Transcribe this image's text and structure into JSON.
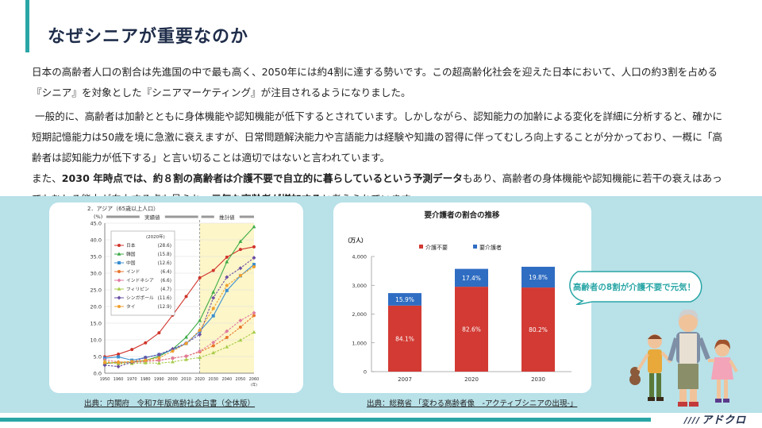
{
  "page": {
    "title": "なぜシニアが重要なのか",
    "paragraphs": {
      "p1": "日本の高齢者人口の割合は先進国の中で最も高く、2050年には約4割に達する勢いです。この超高齢化社会を迎えた日本において、人口の約3割を占める『シニア』を対象とした『シニアマーケティング』が注目されるようになりました。",
      "p2": "一般的に、高齢者は加齢とともに身体機能や認知機能が低下するとされています。しかしながら、認知能力の加齢による変化を詳細に分析すると、確かに短期記憶能力は50歳を境に急激に衰えますが、日常問題解決能力や言語能力は経験や知識の習得に伴ってむしろ向上することが分かっており、一概に「高齢者は認知能力が低下する」と言い切ることは適切ではないと言われています。",
      "p3_a": "また、",
      "p3_b": "2030 年時点では、約８割の高齢者は介護不要で自立的に暮らしているという予測データ",
      "p3_c": "もあり、高齢者の身体機能や認知機能に若干の衰えはあってもむしろ能力が向上する点も見られ、",
      "p3_d": "元気な高齢者が増加する",
      "p3_e": "と考えられています。"
    },
    "source_left": "出典：内閣府　令和7年版高齢社会白書（全体版）",
    "source_right": "出典：総務省 「変わる高齢者像　-アクティブシニアの出現-」",
    "callout": "高齢者の8割が介護不要で元気！",
    "logo": "アドクロ",
    "logo_mark": "////"
  },
  "chart_data": [
    {
      "type": "line",
      "title": "2．アジア（65歳以上人口）",
      "ylabel": "(%)",
      "xlabel": "(年)",
      "ylim": [
        0,
        45
      ],
      "yticks": [
        "0.0",
        "5.0",
        "10.0",
        "15.0",
        "20.0",
        "25.0",
        "30.0",
        "35.0",
        "40.0",
        "45.0"
      ],
      "x": [
        1950,
        1960,
        1970,
        1980,
        1990,
        2000,
        2010,
        2020,
        2030,
        2040,
        2050,
        2060
      ],
      "band_labels": [
        "実績値",
        "推計値"
      ],
      "legend_header": "(2020年)",
      "series": [
        {
          "name": "日本",
          "value_2020": "(28.6)",
          "color": "#d0342c",
          "marker": "circle",
          "values": [
            4.9,
            5.7,
            7.1,
            9.1,
            12.1,
            17.4,
            23.0,
            28.6,
            30.8,
            34.8,
            37.1,
            37.9
          ]
        },
        {
          "name": "韓国",
          "value_2020": "(15.8)",
          "color": "#3cab46",
          "marker": "triangle",
          "values": [
            2.9,
            3.3,
            3.3,
            3.8,
            5.1,
            7.2,
            10.8,
            15.8,
            24.3,
            33.4,
            39.5,
            43.9
          ]
        },
        {
          "name": "中国",
          "value_2020": "(12.6)",
          "color": "#3a8fd1",
          "marker": "square",
          "values": [
            4.5,
            4.9,
            3.9,
            4.7,
            5.6,
            7.0,
            8.9,
            12.6,
            17.2,
            24.8,
            29.2,
            32.6
          ]
        },
        {
          "name": "インド",
          "value_2020": "(6.4)",
          "color": "#e8762c",
          "marker": "circle",
          "values": [
            3.1,
            3.0,
            3.4,
            3.7,
            3.9,
            4.5,
            5.1,
            6.4,
            8.2,
            10.7,
            13.8,
            17.3
          ]
        },
        {
          "name": "インドネシア",
          "value_2020": "(6.6)",
          "color": "#e07aa0",
          "marker": "diamond",
          "values": [
            4.0,
            3.4,
            3.2,
            3.5,
            3.8,
            4.5,
            5.1,
            6.6,
            9.2,
            12.6,
            15.8,
            18.1
          ]
        },
        {
          "name": "フィリピン",
          "value_2020": "(4.7)",
          "color": "#a8cc4a",
          "marker": "triangle",
          "values": [
            3.6,
            2.8,
            2.9,
            3.1,
            3.0,
            3.4,
            4.1,
            4.7,
            6.1,
            7.9,
            9.9,
            12.3
          ]
        },
        {
          "name": "シンガポール",
          "value_2020": "(11.6)",
          "color": "#6a4fa3",
          "marker": "diamond",
          "values": [
            2.4,
            2.0,
            3.3,
            4.7,
            5.6,
            7.3,
            9.0,
            11.6,
            22.6,
            28.8,
            31.5,
            34.6
          ]
        },
        {
          "name": "タイ",
          "value_2020": "(12.9)",
          "color": "#f0a02c",
          "marker": "circle",
          "values": [
            3.2,
            3.3,
            3.5,
            3.9,
            4.6,
            6.6,
            8.9,
            12.9,
            19.4,
            26.3,
            29.3,
            31.9
          ]
        }
      ]
    },
    {
      "type": "bar",
      "stacked": true,
      "title": "要介護者の割合の推移",
      "ylabel": "（万人）",
      "ylim": [
        0,
        4000
      ],
      "yticks": [
        "0",
        "1,000",
        "2,000",
        "3,000",
        "4,000"
      ],
      "categories": [
        "2007",
        "2020",
        "2030"
      ],
      "legend_placement": "top",
      "series": [
        {
          "name": "介護不要",
          "color": "#d23a33",
          "values": [
            2294,
            2949,
            2922
          ],
          "labels": [
            "84.1%",
            "82.6%",
            "80.2%"
          ]
        },
        {
          "name": "要介護者",
          "color": "#2f6dc2",
          "values": [
            434,
            621,
            721
          ],
          "labels": [
            "15.9%",
            "17.4%",
            "19.8%"
          ]
        }
      ]
    }
  ]
}
